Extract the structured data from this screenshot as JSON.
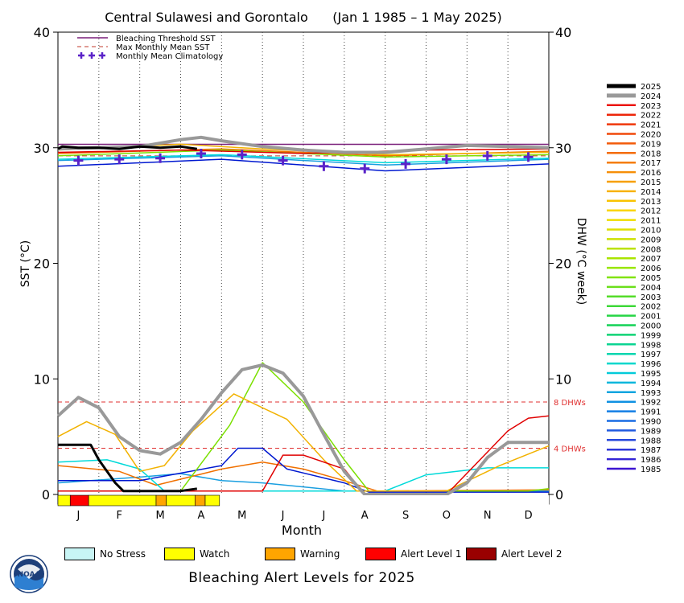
{
  "chart_data": {
    "type": "line",
    "title": "Central Sulawesi and Gorontalo      (Jan 1 1985 – 1 May 2025)",
    "xlabel": "Month",
    "ylabel": "SST (°C)",
    "y2label": "DHW (°C week)",
    "ylim": [
      0,
      40
    ],
    "y2lim": [
      0,
      40
    ],
    "yticks": [
      0,
      10,
      20,
      30,
      40
    ],
    "x_ticks": [
      "J",
      "F",
      "M",
      "A",
      "M",
      "J",
      "J",
      "A",
      "S",
      "O",
      "N",
      "D"
    ],
    "grid": "dotted vertical month lines",
    "legend_placement": "top-left",
    "legend": [
      {
        "label": "Bleaching Threshold SST",
        "style": "solid",
        "color": "#7a1f7a"
      },
      {
        "label": "Max Monthly Mean SST",
        "style": "dashed",
        "color": "#c0392b"
      },
      {
        "label": "Monthly Mean Climatology",
        "style": "plus",
        "color": "#5a22c8"
      }
    ],
    "thresholds": {
      "bleaching_threshold_sst": 30.3,
      "max_monthly_mean_sst": 29.3
    },
    "dhw_reference_lines": [
      {
        "value": 4,
        "label": "4 DHWs"
      },
      {
        "value": 8,
        "label": "8 DHWs"
      }
    ],
    "climatology": [
      28.9,
      29.0,
      29.1,
      29.5,
      29.4,
      28.9,
      28.4,
      28.2,
      28.6,
      29.0,
      29.3,
      29.2
    ],
    "series": [
      {
        "name": "2025",
        "color": "#000000",
        "width": 3,
        "sst": [
          [
            0.0,
            29.9
          ],
          [
            0.1,
            30.1
          ],
          [
            0.5,
            30.0
          ],
          [
            1.0,
            30.0
          ],
          [
            1.5,
            29.9
          ],
          [
            2.0,
            30.1
          ],
          [
            2.5,
            30.0
          ],
          [
            3.0,
            30.1
          ],
          [
            3.4,
            29.9
          ]
        ],
        "dhw": [
          [
            0.0,
            4.3
          ],
          [
            0.8,
            4.3
          ],
          [
            1.0,
            3.0
          ],
          [
            1.4,
            1.0
          ],
          [
            1.6,
            0.3
          ],
          [
            2.5,
            0.3
          ],
          [
            3.0,
            0.3
          ],
          [
            3.4,
            0.5
          ]
        ]
      },
      {
        "name": "2024",
        "color": "#999999",
        "width": 4,
        "sst": [
          [
            0,
            29.9
          ],
          [
            1,
            30.0
          ],
          [
            2,
            30.1
          ],
          [
            3,
            30.7
          ],
          [
            3.5,
            30.9
          ],
          [
            4,
            30.6
          ],
          [
            5,
            30.1
          ],
          [
            6,
            29.8
          ],
          [
            7,
            29.6
          ],
          [
            8,
            29.6
          ],
          [
            9,
            29.9
          ],
          [
            10,
            30.2
          ],
          [
            11,
            30.1
          ],
          [
            12,
            30.0
          ]
        ],
        "dhw": [
          [
            0,
            6.8
          ],
          [
            0.5,
            8.4
          ],
          [
            1.0,
            7.5
          ],
          [
            1.5,
            5.0
          ],
          [
            2.0,
            3.8
          ],
          [
            2.5,
            3.5
          ],
          [
            3.0,
            4.5
          ],
          [
            3.5,
            6.5
          ],
          [
            4.0,
            8.8
          ],
          [
            4.5,
            10.8
          ],
          [
            5.0,
            11.2
          ],
          [
            5.5,
            10.5
          ],
          [
            6.0,
            8.5
          ],
          [
            6.5,
            5.2
          ],
          [
            7.0,
            2.0
          ],
          [
            7.5,
            0
          ],
          [
            9.5,
            0
          ],
          [
            10.0,
            1.0
          ],
          [
            10.5,
            3.2
          ],
          [
            11.0,
            4.5
          ],
          [
            12.0,
            4.5
          ]
        ]
      },
      {
        "name": "2023",
        "color": "#e00000",
        "width": 1.5,
        "sst": [
          [
            0,
            29.6
          ],
          [
            3,
            29.8
          ],
          [
            6,
            29.5
          ],
          [
            9,
            29.8
          ],
          [
            12,
            29.9
          ]
        ],
        "dhw": [
          [
            0,
            0.3
          ],
          [
            5,
            0.3
          ],
          [
            5.5,
            3.4
          ],
          [
            6,
            3.4
          ],
          [
            7,
            2.2
          ],
          [
            7.5,
            0
          ],
          [
            9.5,
            0
          ],
          [
            11,
            5.5
          ],
          [
            11.5,
            6.6
          ],
          [
            12,
            6.8
          ]
        ]
      },
      {
        "name": "2016",
        "color": "#f2b200",
        "width": 1.5,
        "sst": [
          [
            0,
            29.8
          ],
          [
            3,
            30.3
          ],
          [
            5,
            29.9
          ],
          [
            8,
            29.4
          ],
          [
            12,
            29.6
          ]
        ],
        "dhw": [
          [
            0,
            5.0
          ],
          [
            0.7,
            6.3
          ],
          [
            1.4,
            5.2
          ],
          [
            2.0,
            2.0
          ],
          [
            2.6,
            2.5
          ],
          [
            3.3,
            5.5
          ],
          [
            4.3,
            8.7
          ],
          [
            5.0,
            7.5
          ],
          [
            5.6,
            6.5
          ],
          [
            6.5,
            3.0
          ],
          [
            7.3,
            0.3
          ],
          [
            9.5,
            0.3
          ],
          [
            10.8,
            2.5
          ],
          [
            12,
            4.2
          ]
        ]
      },
      {
        "name": "1998",
        "color": "#00d9d9",
        "width": 1.5,
        "sst": [
          [
            0,
            29.0
          ],
          [
            4,
            29.4
          ],
          [
            8,
            28.7
          ],
          [
            12,
            29.1
          ]
        ],
        "dhw": [
          [
            0,
            2.8
          ],
          [
            1.2,
            3.0
          ],
          [
            2.0,
            2.2
          ],
          [
            2.6,
            0.3
          ],
          [
            8,
            0.3
          ],
          [
            9,
            1.7
          ],
          [
            10.5,
            2.3
          ],
          [
            12,
            2.3
          ]
        ]
      },
      {
        "name": "2010",
        "color": "#7be000",
        "width": 1.5,
        "sst": [
          [
            0,
            29.3
          ],
          [
            4,
            29.8
          ],
          [
            8,
            29.2
          ],
          [
            12,
            29.4
          ]
        ],
        "dhw": [
          [
            0,
            0.3
          ],
          [
            3,
            0.3
          ],
          [
            4.2,
            6.0
          ],
          [
            5,
            11.4
          ],
          [
            6,
            8.0
          ],
          [
            7.0,
            3.0
          ],
          [
            7.6,
            0.3
          ],
          [
            11.5,
            0.3
          ],
          [
            12,
            0.5
          ]
        ]
      },
      {
        "name": "1988",
        "color": "#0018d0",
        "width": 1.5,
        "sst": [
          [
            0,
            28.4
          ],
          [
            4,
            29.0
          ],
          [
            8,
            28.0
          ],
          [
            12,
            28.6
          ]
        ],
        "dhw": [
          [
            0,
            1.2
          ],
          [
            2,
            1.2
          ],
          [
            4.0,
            2.5
          ],
          [
            4.4,
            4.0
          ],
          [
            5,
            4.0
          ],
          [
            5.6,
            2.2
          ],
          [
            7,
            1.0
          ],
          [
            7.6,
            0.2
          ],
          [
            12,
            0.2
          ]
        ]
      },
      {
        "name": "2020",
        "color": "#f07000",
        "width": 1.5,
        "sst": [
          [
            0,
            29.5
          ],
          [
            4,
            29.9
          ],
          [
            8,
            29.3
          ],
          [
            12,
            29.7
          ]
        ],
        "dhw": [
          [
            0,
            2.5
          ],
          [
            1.5,
            2.0
          ],
          [
            2.4,
            0.8
          ],
          [
            4,
            2.2
          ],
          [
            5,
            2.8
          ],
          [
            6,
            2.2
          ],
          [
            7,
            1.2
          ],
          [
            7.8,
            0.3
          ],
          [
            12,
            0.4
          ]
        ]
      },
      {
        "name": "1995",
        "color": "#1a9fe0",
        "width": 1.5,
        "sst": [
          [
            0,
            28.9
          ],
          [
            4,
            29.3
          ],
          [
            8,
            28.5
          ],
          [
            12,
            29.0
          ]
        ],
        "dhw": [
          [
            0,
            1.0
          ],
          [
            2,
            1.5
          ],
          [
            3,
            1.8
          ],
          [
            4,
            1.2
          ],
          [
            5,
            1.0
          ],
          [
            7,
            0.3
          ],
          [
            12,
            0.3
          ]
        ]
      }
    ]
  },
  "year_legend": [
    "2025",
    "2024",
    "2023",
    "2022",
    "2021",
    "2020",
    "2019",
    "2018",
    "2017",
    "2016",
    "2015",
    "2014",
    "2013",
    "2012",
    "2011",
    "2010",
    "2009",
    "2008",
    "2007",
    "2006",
    "2005",
    "2004",
    "2003",
    "2002",
    "2001",
    "2000",
    "1999",
    "1998",
    "1997",
    "1996",
    "1995",
    "1994",
    "1993",
    "1992",
    "1991",
    "1990",
    "1989",
    "1988",
    "1987",
    "1986",
    "1985"
  ],
  "alert_strip": [
    {
      "from": 0.0,
      "to": 0.3,
      "level": "watch"
    },
    {
      "from": 0.3,
      "to": 0.75,
      "level": "alert1"
    },
    {
      "from": 0.75,
      "to": 2.4,
      "level": "watch"
    },
    {
      "from": 2.4,
      "to": 2.65,
      "level": "warning"
    },
    {
      "from": 2.65,
      "to": 3.35,
      "level": "watch"
    },
    {
      "from": 3.35,
      "to": 3.6,
      "level": "warning"
    },
    {
      "from": 3.6,
      "to": 3.95,
      "level": "watch"
    }
  ],
  "alert_colors": {
    "no_stress": "#c8f5f5",
    "watch": "#ffff00",
    "warning": "#ffa500",
    "alert1": "#ff0000",
    "alert2": "#990000"
  },
  "alert_legend": {
    "no_stress": "No Stress",
    "watch": "Watch",
    "warning": "Warning",
    "alert1": "Alert Level 1",
    "alert2": "Alert Level 2"
  },
  "footer_title": "Bleaching Alert Levels for 2025",
  "dhw_label_4": "4 DHWs",
  "dhw_label_8": "8 DHWs",
  "logo_text": "NOAA"
}
